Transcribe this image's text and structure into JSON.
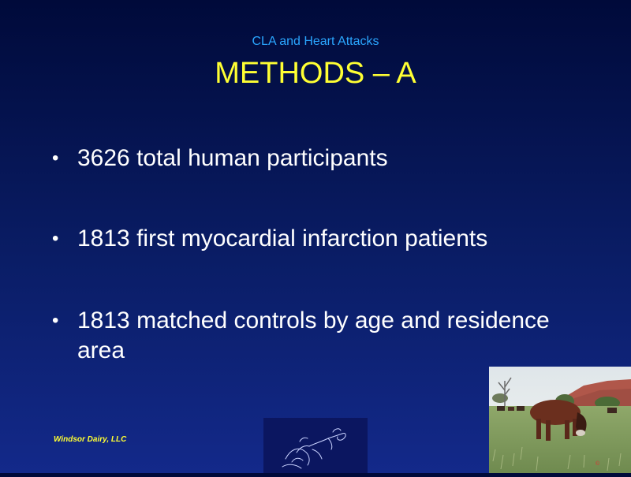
{
  "slide": {
    "subtitle": "CLA and Heart Attacks",
    "title": "METHODS – A",
    "bullets": [
      {
        "symbol": "•",
        "text": "3626 total human participants"
      },
      {
        "symbol": "•",
        "text": "1813 first myocardial infarction patients"
      },
      {
        "symbol": "•",
        "text": "1813 matched controls by age and residence area"
      }
    ],
    "footer": "Windsor Dairy, LLC"
  },
  "colors": {
    "background_top": "#000a3a",
    "background_bottom": "#13298a",
    "title": "#ffff33",
    "subtitle": "#2aa6ff",
    "body_text": "#ffffff",
    "footer": "#ffff33"
  },
  "images": {
    "logo": "line-drawing-logo",
    "photo": "cattle-grazing-photo"
  }
}
